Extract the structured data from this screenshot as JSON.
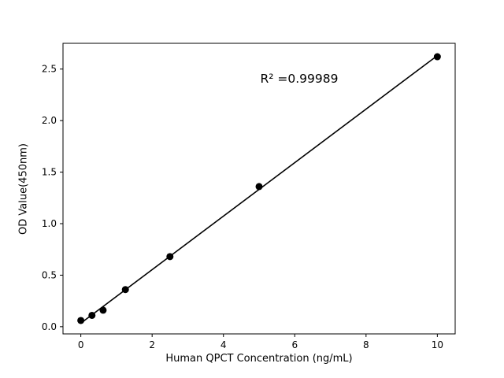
{
  "figure": {
    "background": "#ffffff"
  },
  "chart_data": {
    "type": "scatter",
    "title": "",
    "xlabel": "Human QPCT Concentration (ng/mL)",
    "ylabel": "OD Value(450nm)",
    "annotation": "R² =0.99989",
    "x": [
      0,
      0.3125,
      0.625,
      1.25,
      2.5,
      5,
      10
    ],
    "y": [
      0.06,
      0.11,
      0.16,
      0.36,
      0.68,
      1.36,
      2.62
    ],
    "fit_line": true,
    "xlim": [
      -0.5,
      10.5
    ],
    "ylim": [
      -0.07,
      2.75
    ],
    "xticks": [
      0,
      2,
      4,
      6,
      8,
      10
    ],
    "xtick_labels": [
      "0",
      "2",
      "4",
      "6",
      "8",
      "10"
    ],
    "yticks": [
      0.0,
      0.5,
      1.0,
      1.5,
      2.0,
      2.5
    ],
    "ytick_labels": [
      "0.0",
      "0.5",
      "1.0",
      "1.5",
      "2.0",
      "2.5"
    ],
    "marker_color": "#000000",
    "line_color": "#000000",
    "axis_color": "#000000",
    "grid": false,
    "legend": "none"
  }
}
